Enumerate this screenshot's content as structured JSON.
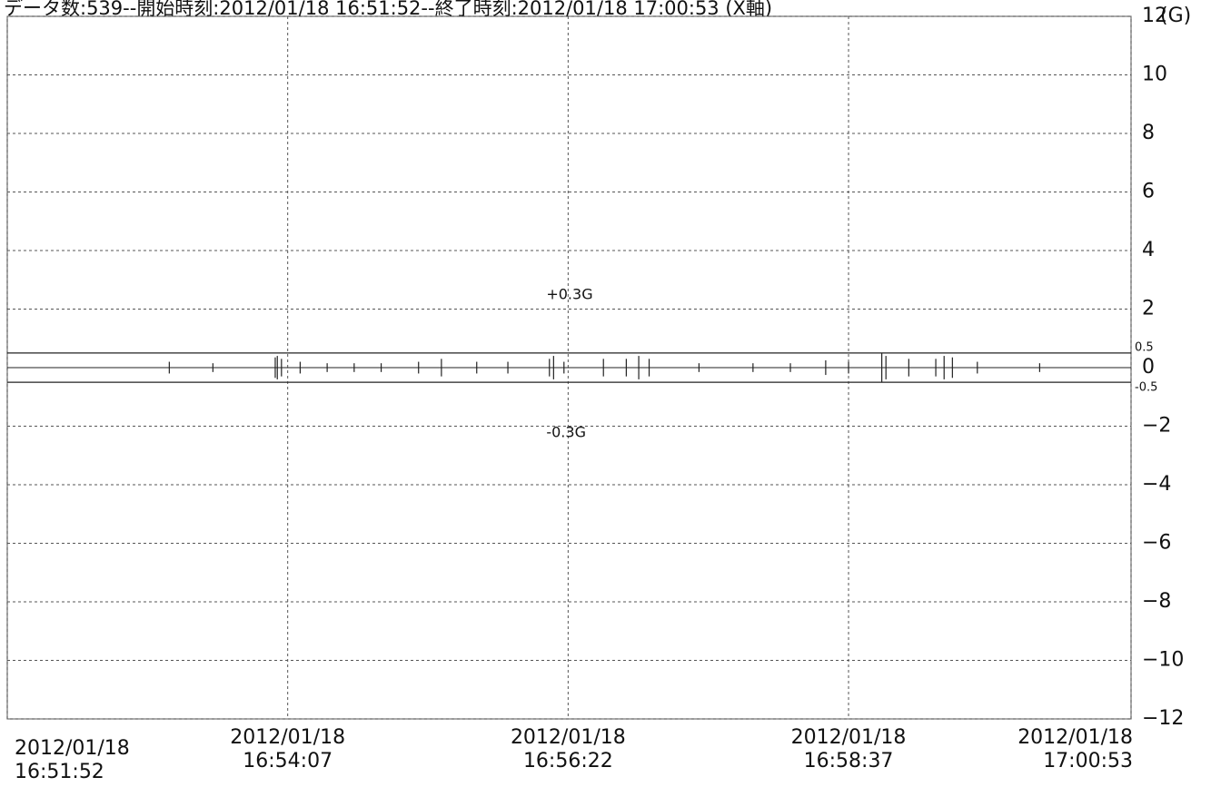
{
  "chart_data": {
    "type": "spike",
    "title": "データ数:539--開始時刻:2012/01/18 16:51:52--終了時刻:2012/01/18 17:00:53 (X軸)",
    "y_unit": "(G)",
    "x": [
      "2012/01/18 16:53:10",
      "2012/01/18 16:53:31",
      "2012/01/18 16:54:01",
      "2012/01/18 16:54:02",
      "2012/01/18 16:54:04",
      "2012/01/18 16:54:13",
      "2012/01/18 16:54:26",
      "2012/01/18 16:54:39",
      "2012/01/18 16:54:52",
      "2012/01/18 16:55:10",
      "2012/01/18 16:55:21",
      "2012/01/18 16:55:38",
      "2012/01/18 16:55:53",
      "2012/01/18 16:56:13",
      "2012/01/18 16:56:15",
      "2012/01/18 16:56:20",
      "2012/01/18 16:56:39",
      "2012/01/18 16:56:50",
      "2012/01/18 16:56:56",
      "2012/01/18 16:57:01",
      "2012/01/18 16:57:25",
      "2012/01/18 16:57:51",
      "2012/01/18 16:58:09",
      "2012/01/18 16:58:26",
      "2012/01/18 16:58:37",
      "2012/01/18 16:58:53",
      "2012/01/18 16:58:55",
      "2012/01/18 16:59:06",
      "2012/01/18 16:59:19",
      "2012/01/18 16:59:23",
      "2012/01/18 16:59:27",
      "2012/01/18 16:59:39",
      "2012/01/18 17:00:09"
    ],
    "series": [
      {
        "color": "#222",
        "values": [
          0.2,
          0.15,
          0.35,
          0.4,
          0.3,
          0.2,
          0.15,
          0.15,
          0.15,
          0.2,
          0.3,
          0.2,
          0.2,
          0.3,
          0.4,
          0.2,
          0.3,
          0.3,
          0.4,
          0.3,
          0.15,
          0.15,
          0.15,
          0.25,
          0.2,
          0.5,
          0.4,
          0.3,
          0.3,
          0.4,
          0.35,
          0.2,
          0.15
        ]
      }
    ],
    "thresholds": [
      0.5,
      -0.5
    ],
    "threshold_labels": [
      "0.5",
      "-0.5"
    ],
    "annotations": [
      "+0.3G",
      "-0.3G"
    ],
    "xlim": [
      "2012/01/18 16:51:52",
      "2012/01/18 17:00:53"
    ],
    "xticks": [
      {
        "value": "2012/01/18 16:51:52",
        "label": "2012/01/18\n16:51:52"
      },
      {
        "value": "2012/01/18 16:54:07",
        "label": "2012/01/18\n16:54:07"
      },
      {
        "value": "2012/01/18 16:56:22",
        "label": "2012/01/18\n16:56:22"
      },
      {
        "value": "2012/01/18 16:58:37",
        "label": "2012/01/18\n16:58:37"
      },
      {
        "value": "2012/01/18 17:00:53",
        "label": "2012/01/18\n17:00:53"
      }
    ],
    "ylim": [
      -12,
      12
    ],
    "yticks": [
      12,
      10,
      8,
      6,
      4,
      2,
      0,
      {
        "value": -2,
        "label": "−2"
      },
      {
        "value": -4,
        "label": "−4"
      },
      {
        "value": -6,
        "label": "−6"
      },
      {
        "value": -8,
        "label": "−8"
      },
      {
        "value": -10,
        "label": "−10"
      },
      {
        "value": -12,
        "label": "−12"
      }
    ],
    "grid": true
  }
}
